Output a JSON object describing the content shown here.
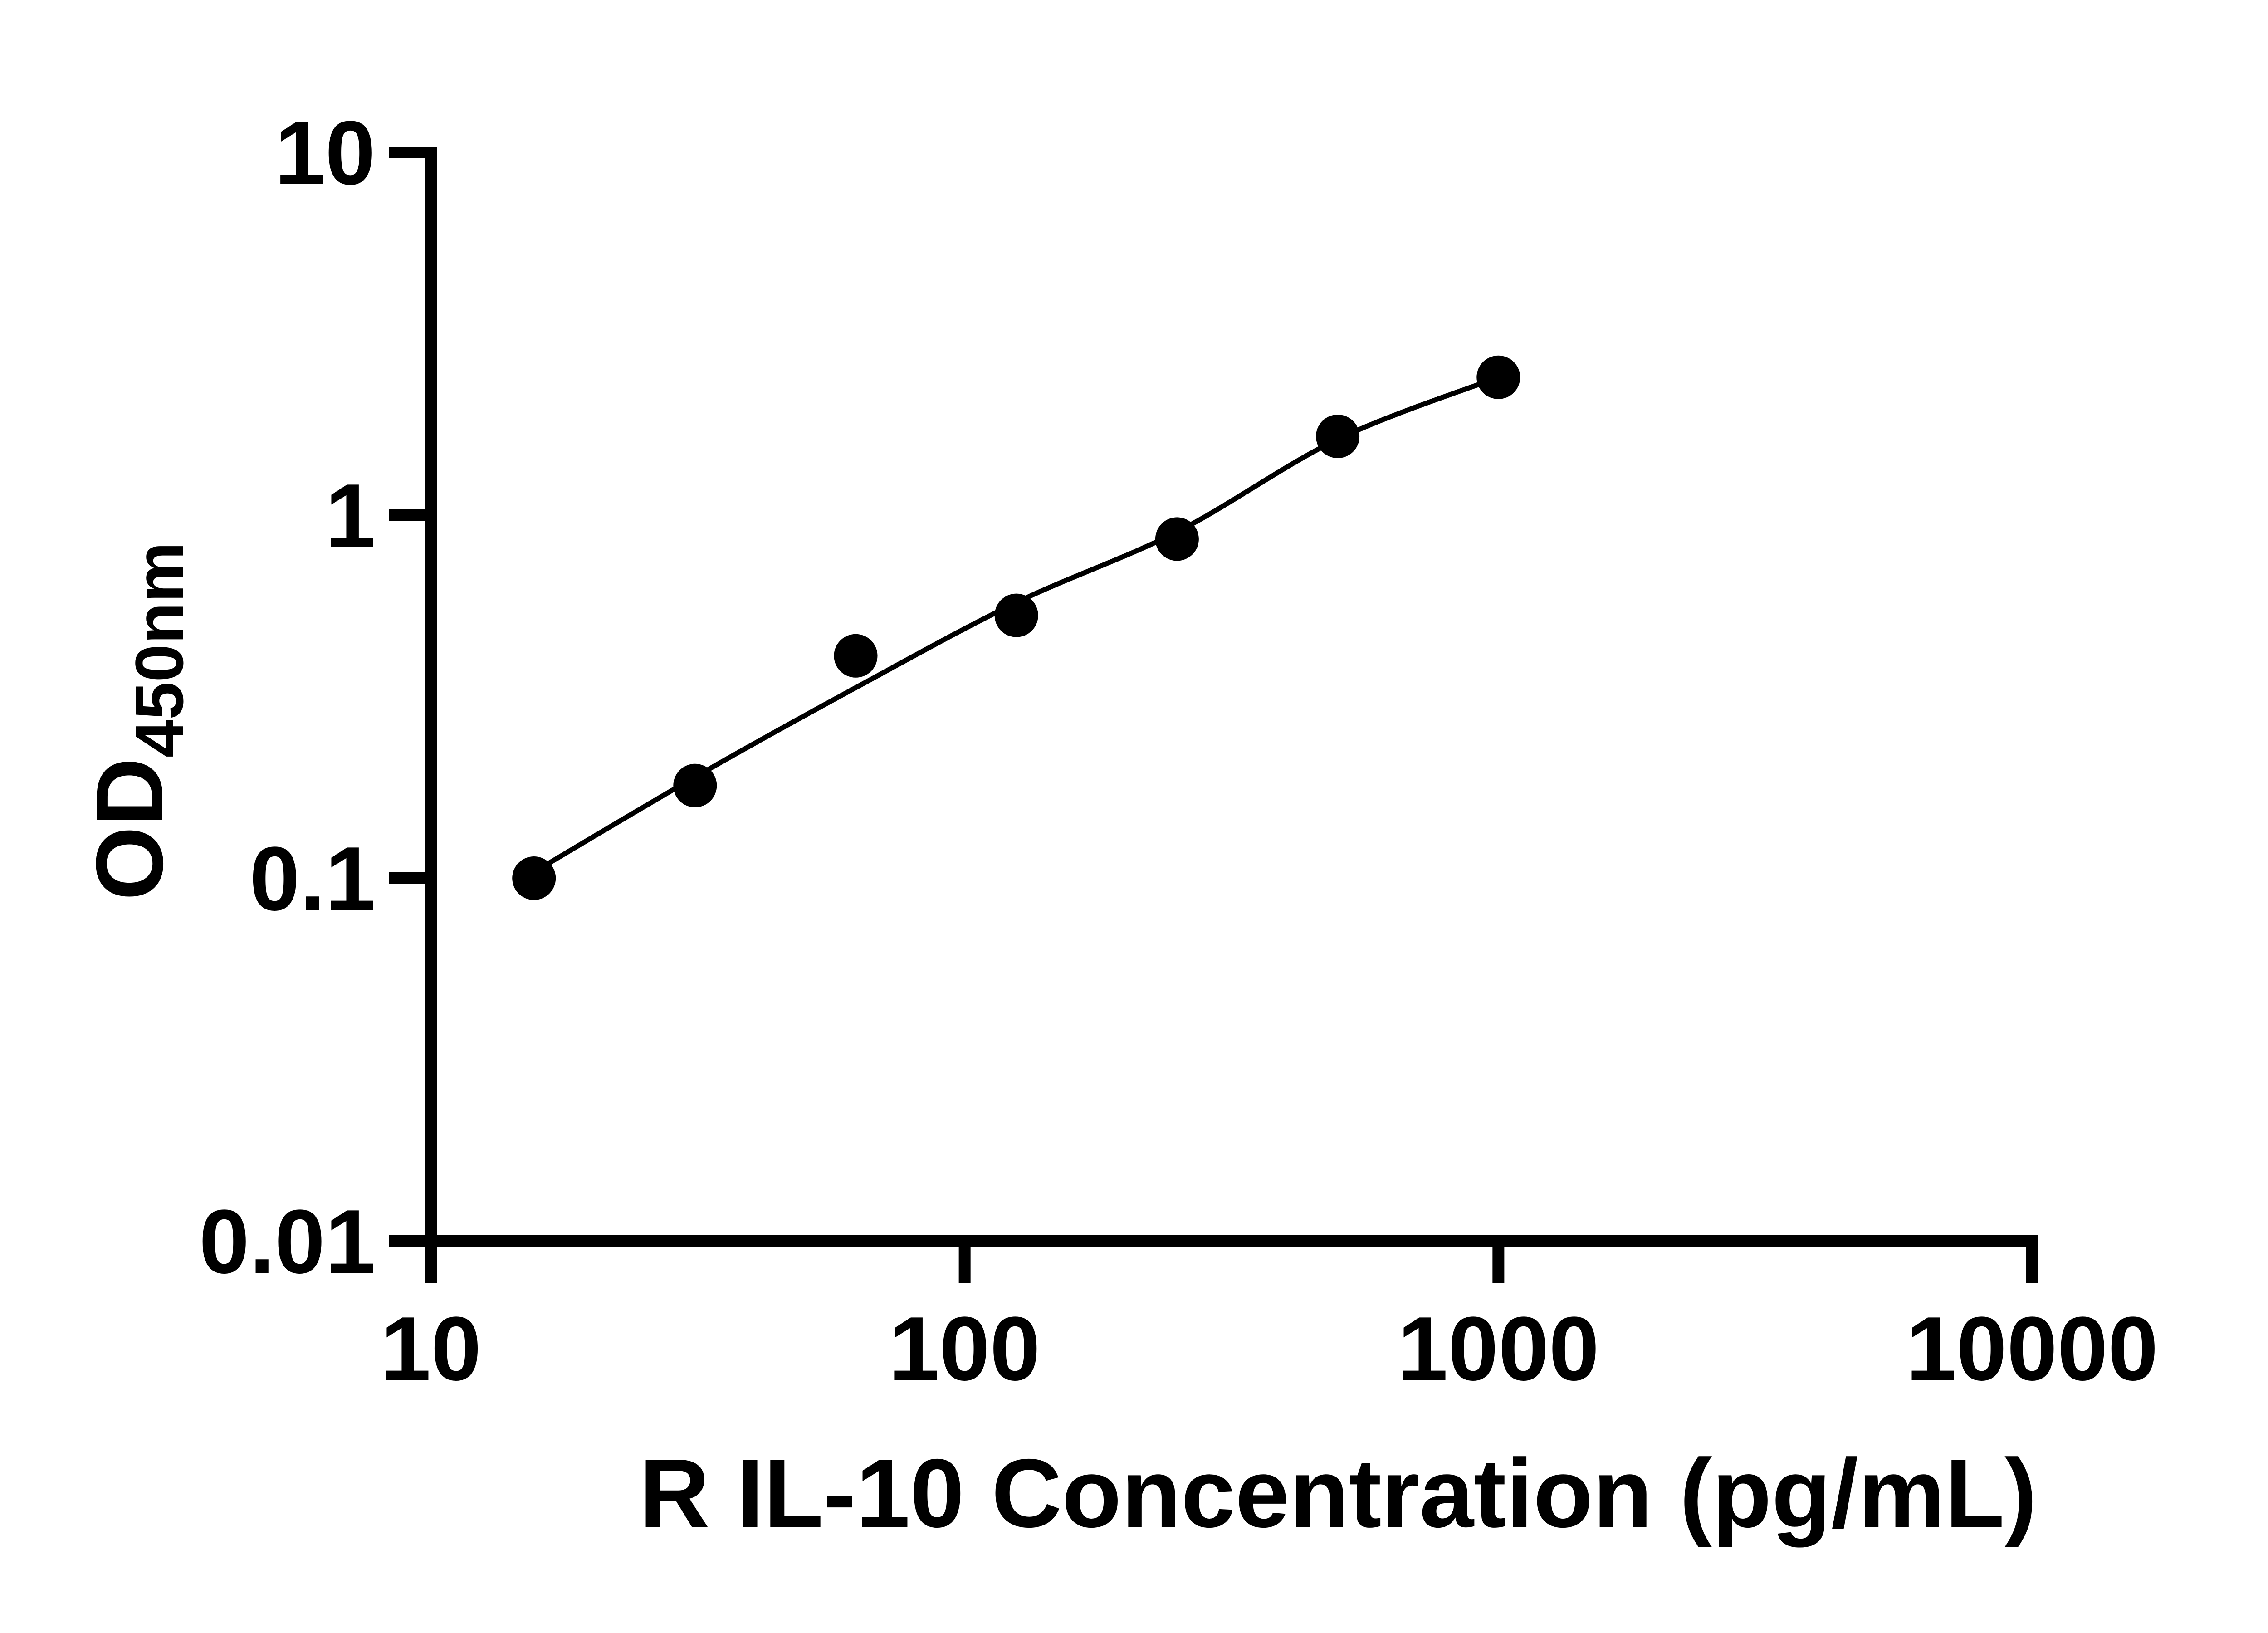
{
  "figure": {
    "background": "#ffffff",
    "ink_color": "#000000",
    "marker": "filled-circle",
    "legend": "none"
  },
  "axes": {
    "x": {
      "title": "R IL-10 Concentration (pg/mL)",
      "scale": "log",
      "min": 10,
      "max": 10000,
      "tick_labels": [
        "10",
        "100",
        "1000",
        "10000"
      ]
    },
    "y": {
      "title_main": "OD",
      "title_sub": "450nm",
      "scale": "log",
      "min": 0.01,
      "max": 10,
      "tick_labels": [
        "10",
        "1",
        "0.1",
        "0.01"
      ]
    }
  },
  "chart_data": {
    "type": "scatter",
    "title": "",
    "xlabel": "R IL-10 Concentration (pg/mL)",
    "ylabel": "OD450nm",
    "x_scale": "log",
    "y_scale": "log",
    "xlim": [
      10,
      10000
    ],
    "ylim": [
      0.01,
      10
    ],
    "x_ticks": [
      10,
      100,
      1000,
      10000
    ],
    "y_ticks": [
      10,
      1,
      0.1,
      0.01
    ],
    "x_tick_labels": [
      "10",
      "100",
      "1000",
      "10000"
    ],
    "y_tick_labels": [
      "10",
      "1",
      "0.1",
      "0.01"
    ],
    "grid": "off",
    "legend_position": "none",
    "series": [
      {
        "name": "standard-curve-points",
        "x": [
          15.6,
          31.25,
          62.5,
          125,
          250,
          500,
          1000
        ],
        "y": [
          0.1,
          0.18,
          0.41,
          0.53,
          0.86,
          1.65,
          2.4
        ]
      }
    ],
    "fit_curve": {
      "name": "four-parameter-logistic-fit",
      "x": [
        15.6,
        31.25,
        62.5,
        125,
        250,
        500,
        1000
      ],
      "y": [
        0.104,
        0.19,
        0.335,
        0.575,
        0.9,
        1.62,
        2.4
      ]
    }
  }
}
